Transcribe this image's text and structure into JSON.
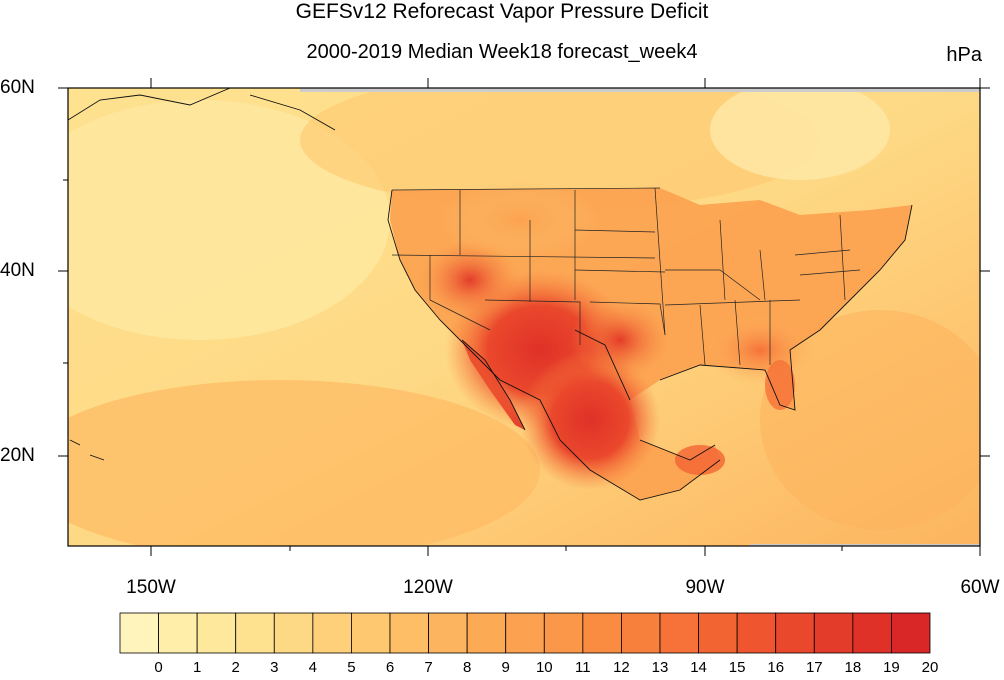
{
  "title": "GEFSv12 Reforecast Vapor Pressure Deficit",
  "subtitle": "2000-2019 Median Week18 forecast_week4",
  "units": "hPa",
  "lat_labels": [
    "60N",
    "40N",
    "20N"
  ],
  "lon_labels": [
    "150W",
    "120W",
    "90W",
    "60W"
  ],
  "colorbar": {
    "labels": [
      "0",
      "1",
      "2",
      "3",
      "4",
      "5",
      "6",
      "7",
      "8",
      "9",
      "10",
      "11",
      "12",
      "13",
      "14",
      "15",
      "16",
      "17",
      "18",
      "19",
      "20"
    ],
    "colors": [
      "#fff5bc",
      "#ffeeaa",
      "#fee89c",
      "#fee290",
      "#fed985",
      "#fed07a",
      "#fec870",
      "#febe66",
      "#fdb45e",
      "#fdaa55",
      "#fca14f",
      "#fb9748",
      "#fa8c42",
      "#f8803d",
      "#f67238",
      "#f36433",
      "#ef562f",
      "#ea482c",
      "#e43c2a",
      "#df3128",
      "#d92626"
    ]
  },
  "map": {
    "region": "North America & NE Pacific",
    "lat_range": [
      10,
      60
    ],
    "lon_range": [
      -160,
      -60
    ],
    "colors": {
      "ocean_low": "#fed982",
      "ocean_mid": "#fcc46c",
      "land_high": "#e33a2a",
      "land_mid": "#f8913f"
    }
  }
}
